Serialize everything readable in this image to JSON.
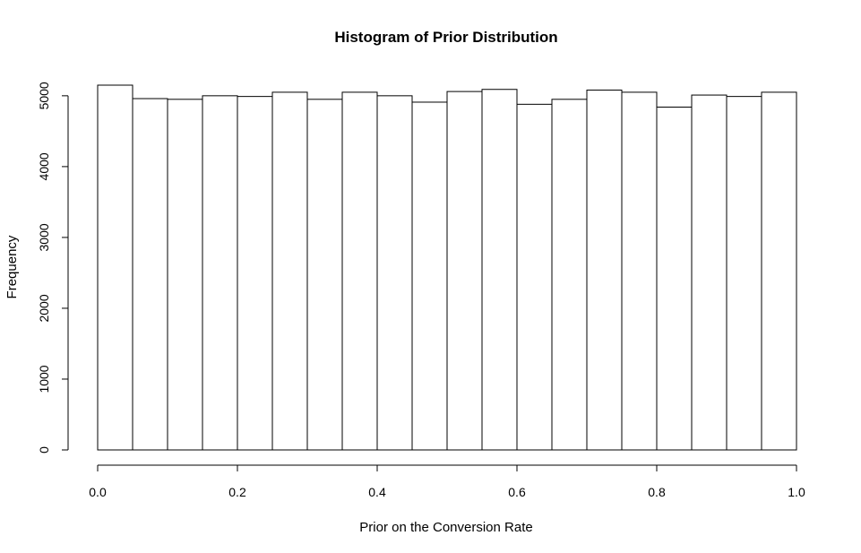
{
  "chart_data": {
    "type": "bar",
    "title": "Histogram of Prior Distribution",
    "xlabel": "Prior on the Conversion Rate",
    "ylabel": "Frequency",
    "bin_edges": [
      0.0,
      0.05,
      0.1,
      0.15,
      0.2,
      0.25,
      0.3,
      0.35,
      0.4,
      0.45,
      0.5,
      0.55,
      0.6,
      0.65,
      0.7,
      0.75,
      0.8,
      0.85,
      0.9,
      0.95,
      1.0
    ],
    "values": [
      5150,
      4960,
      4950,
      5000,
      4990,
      5050,
      4950,
      5050,
      5000,
      4910,
      5060,
      5090,
      4880,
      4950,
      5080,
      5050,
      4840,
      5010,
      4990,
      5050
    ],
    "xlim": [
      0.0,
      1.0
    ],
    "ylim": [
      0,
      5150
    ],
    "x_ticks": [
      0.0,
      0.2,
      0.4,
      0.6,
      0.8,
      1.0
    ],
    "x_tick_labels": [
      "0.0",
      "0.2",
      "0.4",
      "0.6",
      "0.8",
      "1.0"
    ],
    "y_ticks": [
      0,
      1000,
      2000,
      3000,
      4000,
      5000
    ],
    "y_tick_labels": [
      "0",
      "1000",
      "2000",
      "3000",
      "4000",
      "5000"
    ],
    "grid": false,
    "bar_fill": "#ffffff",
    "bar_stroke": "#000000"
  }
}
